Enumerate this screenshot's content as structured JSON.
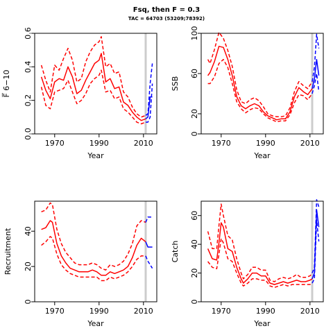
{
  "title": "Fsq, then F = 0.3",
  "subtitle": "TAC = 64703 (53209;78392)",
  "colors": {
    "estimate": "#ff0000",
    "forecast": "#0000ff",
    "marker": "#cccccc"
  },
  "chart_data": [
    {
      "type": "line",
      "ylabel": "F̅ 6−10",
      "xlabel": "Year",
      "ylim": [
        0,
        0.6
      ],
      "xlim": [
        1961,
        2016
      ],
      "yticks": [
        "0.0",
        "0.2",
        "0.4",
        "0.6"
      ],
      "xticks": [
        "1970",
        "1990",
        "2010"
      ],
      "marker_year": 2011,
      "series": [
        {
          "role": "estimate",
          "style": "solid",
          "x": [
            1964,
            1966,
            1968,
            1970,
            1972,
            1974,
            1976,
            1978,
            1980,
            1982,
            1984,
            1986,
            1988,
            1990,
            1991,
            1993,
            1995,
            1997,
            1999,
            2001,
            2003,
            2005,
            2007,
            2009,
            2011
          ],
          "y": [
            0.34,
            0.26,
            0.21,
            0.31,
            0.33,
            0.32,
            0.4,
            0.34,
            0.24,
            0.26,
            0.32,
            0.37,
            0.42,
            0.44,
            0.48,
            0.31,
            0.33,
            0.27,
            0.28,
            0.19,
            0.17,
            0.13,
            0.1,
            0.08,
            0.09
          ]
        },
        {
          "role": "estimate",
          "style": "dashed",
          "x": [
            1964,
            1966,
            1968,
            1970,
            1972,
            1974,
            1976,
            1978,
            1980,
            1982,
            1984,
            1986,
            1988,
            1990,
            1991,
            1993,
            1995,
            1997,
            1999,
            2001,
            2003,
            2005,
            2007,
            2009,
            2011
          ],
          "y": [
            0.41,
            0.32,
            0.25,
            0.41,
            0.38,
            0.45,
            0.51,
            0.44,
            0.31,
            0.33,
            0.43,
            0.49,
            0.53,
            0.55,
            0.58,
            0.4,
            0.42,
            0.36,
            0.37,
            0.25,
            0.22,
            0.16,
            0.12,
            0.1,
            0.11
          ]
        },
        {
          "role": "estimate",
          "style": "dashed",
          "x": [
            1964,
            1966,
            1968,
            1970,
            1972,
            1974,
            1976,
            1978,
            1980,
            1982,
            1984,
            1986,
            1988,
            1990,
            1991,
            1993,
            1995,
            1997,
            1999,
            2001,
            2003,
            2005,
            2007,
            2009,
            2011
          ],
          "y": [
            0.28,
            0.17,
            0.15,
            0.25,
            0.26,
            0.27,
            0.32,
            0.25,
            0.18,
            0.2,
            0.24,
            0.3,
            0.33,
            0.35,
            0.38,
            0.25,
            0.26,
            0.21,
            0.22,
            0.15,
            0.13,
            0.1,
            0.07,
            0.06,
            0.07
          ]
        },
        {
          "role": "forecast",
          "style": "solid",
          "x": [
            2011,
            2012,
            2013,
            2014
          ],
          "y": [
            0.09,
            0.1,
            0.22,
            0.22
          ]
        },
        {
          "role": "forecast",
          "style": "dashed",
          "x": [
            2011,
            2012,
            2013,
            2014
          ],
          "y": [
            0.11,
            0.12,
            0.3,
            0.42
          ]
        },
        {
          "role": "forecast",
          "style": "dashed",
          "x": [
            2011,
            2012,
            2013,
            2014
          ],
          "y": [
            0.07,
            0.07,
            0.1,
            0.3
          ]
        }
      ]
    },
    {
      "type": "line",
      "ylabel": "SSB",
      "xlabel": "Year",
      "ylim": [
        0,
        100
      ],
      "xlim": [
        1961,
        2016
      ],
      "yticks": [
        "0",
        "20",
        "60",
        "100"
      ],
      "xticks": [
        "1970",
        "1990",
        "2010"
      ],
      "marker_year": 2011,
      "series": [
        {
          "role": "estimate",
          "style": "solid",
          "x": [
            1964,
            1965,
            1967,
            1969,
            1971,
            1973,
            1975,
            1977,
            1979,
            1981,
            1983,
            1985,
            1987,
            1989,
            1991,
            1993,
            1995,
            1997,
            1999,
            2001,
            2003,
            2005,
            2007,
            2009,
            2011
          ],
          "y": [
            58,
            61,
            72,
            87,
            86,
            74,
            58,
            37,
            28,
            25,
            28,
            30,
            28,
            22,
            18,
            16,
            14,
            15,
            15,
            22,
            37,
            46,
            42,
            39,
            45
          ]
        },
        {
          "role": "estimate",
          "style": "dashed",
          "x": [
            1964,
            1965,
            1967,
            1969,
            1971,
            1973,
            1975,
            1977,
            1979,
            1981,
            1983,
            1985,
            1987,
            1989,
            1991,
            1993,
            1995,
            1997,
            1999,
            2001,
            2003,
            2005,
            2007,
            2009,
            2011
          ],
          "y": [
            74,
            70,
            84,
            101,
            95,
            83,
            67,
            44,
            32,
            30,
            34,
            36,
            33,
            27,
            20,
            18,
            17,
            17,
            18,
            26,
            42,
            52,
            48,
            45,
            52
          ]
        },
        {
          "role": "estimate",
          "style": "dashed",
          "x": [
            1964,
            1965,
            1967,
            1969,
            1971,
            1973,
            1975,
            1977,
            1979,
            1981,
            1983,
            1985,
            1987,
            1989,
            1991,
            1993,
            1995,
            1997,
            1999,
            2001,
            2003,
            2005,
            2007,
            2009,
            2011
          ],
          "y": [
            50,
            50,
            57,
            70,
            74,
            66,
            50,
            32,
            25,
            21,
            24,
            26,
            25,
            20,
            16,
            14,
            12,
            13,
            13,
            19,
            31,
            39,
            38,
            34,
            40
          ]
        },
        {
          "role": "forecast",
          "style": "solid",
          "x": [
            2011,
            2012,
            2013,
            2014
          ],
          "y": [
            45,
            55,
            74,
            58
          ]
        },
        {
          "role": "forecast",
          "style": "dashed",
          "x": [
            2011,
            2012,
            2013,
            2014
          ],
          "y": [
            52,
            66,
            99,
            85
          ]
        },
        {
          "role": "forecast",
          "style": "dashed",
          "x": [
            2011,
            2012,
            2013,
            2014
          ],
          "y": [
            40,
            48,
            60,
            42
          ]
        }
      ]
    },
    {
      "type": "line",
      "ylabel": "Recruitment",
      "xlabel": "Year",
      "ylim": [
        0,
        57
      ],
      "xlim": [
        1961,
        2016
      ],
      "yticks": [
        "0",
        "20",
        "40"
      ],
      "xticks": [
        "1970",
        "1990",
        "2010"
      ],
      "marker_year": 2011,
      "series": [
        {
          "role": "estimate",
          "style": "solid",
          "x": [
            1964,
            1966,
            1968,
            1969,
            1971,
            1973,
            1975,
            1977,
            1979,
            1981,
            1983,
            1985,
            1987,
            1989,
            1991,
            1993,
            1995,
            1997,
            1999,
            2001,
            2003,
            2005,
            2007,
            2009,
            2011
          ],
          "y": [
            41,
            42,
            46,
            45,
            33,
            26,
            22,
            19,
            18,
            17,
            17,
            17,
            18,
            17,
            15,
            15,
            17,
            16,
            17,
            18,
            20,
            25,
            32,
            36,
            34
          ]
        },
        {
          "role": "estimate",
          "style": "dashed",
          "x": [
            1964,
            1966,
            1968,
            1969,
            1971,
            1973,
            1975,
            1977,
            1979,
            1981,
            1983,
            1985,
            1987,
            1989,
            1991,
            1993,
            1995,
            1997,
            1999,
            2001,
            2003,
            2005,
            2007,
            2009,
            2011
          ],
          "y": [
            51,
            52,
            56,
            55,
            41,
            33,
            28,
            25,
            22,
            21,
            21,
            21,
            22,
            21,
            19,
            18,
            21,
            20,
            21,
            23,
            27,
            33,
            43,
            46,
            45
          ]
        },
        {
          "role": "estimate",
          "style": "dashed",
          "x": [
            1964,
            1966,
            1968,
            1969,
            1971,
            1973,
            1975,
            1977,
            1979,
            1981,
            1983,
            1985,
            1987,
            1989,
            1991,
            1993,
            1995,
            1997,
            1999,
            2001,
            2003,
            2005,
            2007,
            2009,
            2011
          ],
          "y": [
            32,
            34,
            37,
            36,
            27,
            21,
            18,
            16,
            15,
            14,
            14,
            14,
            14,
            14,
            12,
            12,
            14,
            13,
            14,
            15,
            17,
            20,
            24,
            26,
            26
          ]
        },
        {
          "role": "forecast",
          "style": "solid",
          "x": [
            2011,
            2012,
            2013,
            2014
          ],
          "y": [
            34,
            31,
            31,
            31
          ]
        },
        {
          "role": "forecast",
          "style": "dashed",
          "x": [
            2011,
            2012,
            2013,
            2014
          ],
          "y": [
            45,
            48,
            48,
            48
          ]
        },
        {
          "role": "forecast",
          "style": "dashed",
          "x": [
            2011,
            2012,
            2013,
            2014
          ],
          "y": [
            26,
            23,
            21,
            19
          ]
        }
      ]
    },
    {
      "type": "line",
      "ylabel": "Catch",
      "xlabel": "Year",
      "ylim": [
        0,
        70
      ],
      "xlim": [
        1961,
        2016
      ],
      "yticks": [
        "0",
        "20",
        "40",
        "60"
      ],
      "xticks": [
        "1970",
        "1990",
        "2010"
      ],
      "marker_year": 2011,
      "series": [
        {
          "role": "estimate",
          "style": "solid",
          "x": [
            1964,
            1966,
            1968,
            1969,
            1970,
            1971,
            1973,
            1975,
            1977,
            1979,
            1980,
            1982,
            1984,
            1986,
            1988,
            1990,
            1992,
            1994,
            1996,
            1998,
            2000,
            2002,
            2004,
            2006,
            2008,
            2010,
            2011
          ],
          "y": [
            37,
            30,
            29,
            41,
            55,
            52,
            37,
            35,
            24,
            16,
            13,
            16,
            20,
            20,
            18,
            18,
            13,
            12,
            13,
            14,
            13,
            14,
            15,
            14,
            14,
            15,
            16
          ]
        },
        {
          "role": "estimate",
          "style": "dashed",
          "x": [
            1964,
            1966,
            1968,
            1969,
            1970,
            1971,
            1973,
            1975,
            1977,
            1979,
            1980,
            1982,
            1984,
            1986,
            1988,
            1990,
            1992,
            1994,
            1996,
            1998,
            2000,
            2002,
            2004,
            2006,
            2008,
            2010,
            2011
          ],
          "y": [
            49,
            37,
            37,
            53,
            68,
            60,
            46,
            43,
            30,
            20,
            16,
            19,
            24,
            24,
            22,
            22,
            15,
            14,
            16,
            17,
            16,
            17,
            19,
            17,
            17,
            18,
            20
          ]
        },
        {
          "role": "estimate",
          "style": "dashed",
          "x": [
            1964,
            1966,
            1968,
            1969,
            1970,
            1971,
            1973,
            1975,
            1977,
            1979,
            1980,
            1982,
            1984,
            1986,
            1988,
            1990,
            1992,
            1994,
            1996,
            1998,
            2000,
            2002,
            2004,
            2006,
            2008,
            2010,
            2011
          ],
          "y": [
            28,
            24,
            23,
            33,
            44,
            41,
            30,
            28,
            20,
            13,
            11,
            13,
            16,
            16,
            15,
            15,
            11,
            10,
            11,
            12,
            11,
            12,
            12,
            12,
            12,
            12,
            13
          ]
        },
        {
          "role": "forecast",
          "style": "solid",
          "x": [
            2011,
            2012,
            2013,
            2014
          ],
          "y": [
            16,
            20,
            64,
            52
          ]
        },
        {
          "role": "forecast",
          "style": "dashed",
          "x": [
            2011,
            2012,
            2013,
            2014
          ],
          "y": [
            20,
            24,
            71,
            66
          ]
        },
        {
          "role": "forecast",
          "style": "dashed",
          "x": [
            2011,
            2012,
            2013,
            2014
          ],
          "y": [
            13,
            16,
            57,
            42
          ]
        }
      ]
    }
  ]
}
